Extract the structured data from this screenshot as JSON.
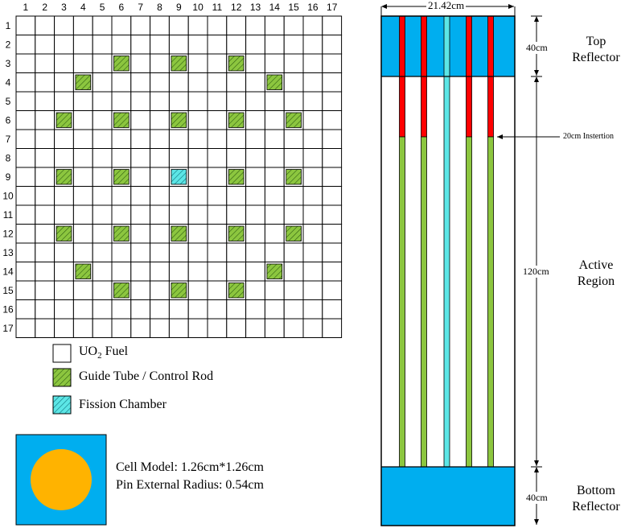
{
  "lattice": {
    "column_labels": [
      "1",
      "2",
      "3",
      "4",
      "5",
      "6",
      "7",
      "8",
      "9",
      "10",
      "11",
      "12",
      "13",
      "14",
      "15",
      "16",
      "17"
    ],
    "row_labels": [
      "1",
      "2",
      "3",
      "4",
      "5",
      "6",
      "7",
      "8",
      "9",
      "10",
      "11",
      "12",
      "13",
      "14",
      "15",
      "16",
      "17"
    ],
    "guide_tube_positions": [
      [
        3,
        6
      ],
      [
        3,
        9
      ],
      [
        3,
        12
      ],
      [
        4,
        4
      ],
      [
        4,
        14
      ],
      [
        6,
        3
      ],
      [
        6,
        6
      ],
      [
        6,
        9
      ],
      [
        6,
        12
      ],
      [
        6,
        15
      ],
      [
        9,
        3
      ],
      [
        9,
        6
      ],
      [
        9,
        12
      ],
      [
        9,
        15
      ],
      [
        12,
        3
      ],
      [
        12,
        6
      ],
      [
        12,
        9
      ],
      [
        12,
        12
      ],
      [
        12,
        15
      ],
      [
        14,
        4
      ],
      [
        14,
        14
      ],
      [
        15,
        6
      ],
      [
        15,
        9
      ],
      [
        15,
        12
      ]
    ],
    "fission_chamber_positions": [
      [
        9,
        9
      ]
    ]
  },
  "legend": {
    "fuel_label_prefix": "UO",
    "fuel_label_sub": "2",
    "fuel_label_suffix": " Fuel",
    "guide_label": "Guide Tube / Control Rod",
    "fission_label": "Fission Chamber"
  },
  "cell": {
    "model_text": "Cell Model: 1.26cm*1.26cm",
    "radius_text": "Pin External Radius: 0.54cm"
  },
  "assembly": {
    "width_label": "21.42cm",
    "top_height_label": "40cm",
    "active_height_label": "120cm",
    "bottom_height_label": "40cm",
    "insertion_label": "20cm Instertion",
    "top_label": [
      "Top",
      "Reflector"
    ],
    "active_label": [
      "Active",
      "Region"
    ],
    "bottom_label": [
      "Bottom",
      "Reflector"
    ]
  },
  "colors": {
    "guide_tube": "#8cc63f",
    "fission_chamber": "#5ce6e6",
    "reflector": "#00aeef",
    "control_rod": "#ff0000",
    "pin": "#ffb300"
  }
}
